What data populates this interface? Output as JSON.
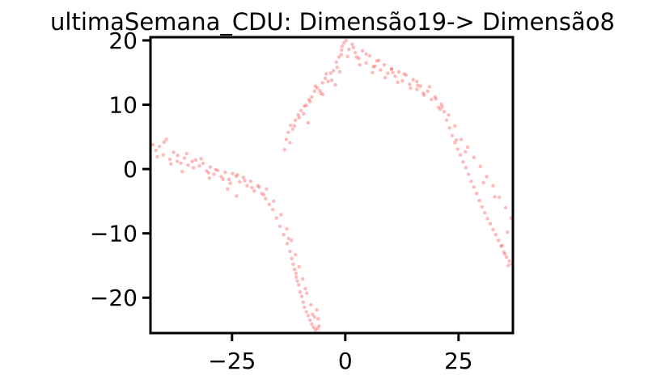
{
  "chart_data": {
    "type": "scatter",
    "title": "ultimaSemana_CDU: Dimensão19-> Dimensão8",
    "xlabel": "",
    "ylabel": "",
    "xlim": [
      -43,
      37
    ],
    "ylim": [
      -25.5,
      20.5
    ],
    "xticks": [
      {
        "value": -25,
        "label": "−25"
      },
      {
        "value": 0,
        "label": "0"
      },
      {
        "value": 25,
        "label": "25"
      }
    ],
    "yticks": [
      {
        "value": 20,
        "label": "20"
      },
      {
        "value": 10,
        "label": "10"
      },
      {
        "value": 0,
        "label": "0"
      },
      {
        "value": -10,
        "label": "−10"
      },
      {
        "value": -20,
        "label": "−20"
      }
    ],
    "grid": false,
    "legend": "none",
    "colors": {
      "point": "#ff3b3b",
      "axes": "#000000",
      "background": "#ffffff"
    },
    "series": [
      {
        "x": [
          -42.5,
          -41.8,
          -41.0,
          -40.2,
          -39.5,
          -38.7,
          -37.9,
          -37.1,
          -36.3,
          -35.5,
          -34.7,
          -33.8,
          -33.0,
          -32.2,
          -31.4,
          -30.6,
          -29.8,
          -29.0,
          -28.2,
          -27.4,
          -26.5,
          -25.7,
          -24.9,
          -24.1,
          -23.3,
          -22.5,
          -21.7,
          -20.9,
          -20.1,
          -19.3,
          -18.4,
          -17.6,
          -16.8,
          -16.0,
          -15.2,
          -14.4,
          -13.6,
          -12.8,
          -12.2,
          -11.8,
          -11.5,
          -11.2,
          -10.9,
          -10.6,
          -10.3,
          -10.0,
          -9.6,
          -9.3,
          -9.0,
          -8.6,
          -8.2,
          -7.8,
          -7.4,
          -7.0,
          -6.6,
          -6.3,
          -6.0,
          -5.8,
          -41.5,
          -40.0,
          -38.5,
          -37.0,
          -35.0,
          -33.5,
          -31.8,
          -30.2,
          -28.6,
          -27.0,
          -25.4,
          -23.8,
          -22.2,
          -20.6,
          -19.0,
          -17.4,
          -15.8,
          -14.2,
          -12.9,
          -11.9,
          -11.0,
          -10.2,
          -9.4,
          -8.5,
          -7.6,
          -6.8,
          -6.1,
          -36.0,
          -30.0,
          -26.0,
          -24.0,
          -18.0,
          -12.5,
          -10.8,
          -8.8,
          -7.2,
          -13.4,
          -13.0,
          -12.6,
          -12.1,
          -11.6,
          -11.0,
          -10.4,
          -9.8,
          -9.2,
          -8.6,
          -8.0,
          -7.4,
          -6.8,
          -6.2,
          -5.6,
          -5.0,
          -4.4,
          -3.8,
          -3.2,
          -2.6,
          -2.0,
          -1.4,
          -0.8,
          -0.3,
          -12.2,
          -11.2,
          -10.2,
          -9.0,
          -7.8,
          -6.6,
          -5.4,
          -4.2,
          -3.0,
          -1.8,
          -0.9,
          -8.2,
          -5.0,
          -2.2,
          -1.2,
          -0.7,
          0.2,
          0.8,
          1.5,
          2.2,
          3.0,
          3.8,
          4.6,
          5.4,
          6.2,
          7.0,
          7.8,
          8.6,
          9.4,
          10.2,
          11.0,
          11.8,
          12.6,
          13.4,
          14.2,
          15.0,
          15.8,
          16.6,
          17.4,
          18.2,
          19.0,
          19.8,
          20.6,
          21.2,
          21.8,
          22.4,
          23.0,
          23.6,
          24.2,
          24.8,
          25.4,
          26.0,
          26.6,
          27.2,
          27.8,
          28.4,
          29.0,
          29.6,
          30.2,
          30.8,
          31.4,
          32.0,
          32.6,
          33.2,
          33.8,
          34.4,
          35.0,
          35.6,
          36.2,
          36.8,
          0.5,
          1.8,
          3.2,
          4.6,
          6.0,
          7.4,
          8.8,
          10.2,
          11.6,
          13.0,
          14.4,
          15.8,
          17.2,
          18.6,
          20.0,
          21.4,
          22.8,
          24.2,
          25.6,
          27.0,
          28.4,
          29.8,
          31.2,
          32.6,
          34.0,
          35.4,
          36.6,
          2.5,
          6.5,
          10.5,
          16.0,
          21.0,
          24.5,
          26.5,
          30.5,
          33.0,
          35.8,
          34.6,
          35.2,
          36.0
        ],
        "y": [
          3.8,
          2.9,
          3.5,
          2.2,
          4.6,
          1.5,
          2.6,
          1.2,
          0.9,
          1.7,
          0.6,
          1.2,
          1.4,
          0.5,
          0.9,
          -0.3,
          0.3,
          -0.8,
          -0.2,
          -1.2,
          -0.5,
          -1.6,
          -0.7,
          -1.1,
          -2.0,
          -1.3,
          -2.6,
          -1.9,
          -3.4,
          -2.6,
          -3.8,
          -4.6,
          -5.5,
          -6.3,
          -7.6,
          -8.9,
          -10.2,
          -11.6,
          -12.8,
          -13.9,
          -14.8,
          -15.6,
          -16.2,
          -17.4,
          -18.0,
          -19.1,
          -19.8,
          -20.7,
          -21.5,
          -22.2,
          -22.8,
          -23.5,
          -24.1,
          -24.6,
          -25.0,
          -21.9,
          -23.3,
          -24.4,
          1.9,
          4.2,
          0.8,
          2.1,
          2.4,
          0.2,
          1.6,
          -0.6,
          -0.1,
          -1.6,
          -2.2,
          -0.9,
          -1.8,
          -2.9,
          -2.8,
          -3.1,
          -5.0,
          -7.1,
          -9.3,
          -11.1,
          -13.3,
          -15.2,
          -17.1,
          -19.3,
          -21.1,
          -23.0,
          -24.8,
          -0.4,
          -1.4,
          -3.1,
          -4.2,
          -4.0,
          -10.8,
          -16.8,
          -18.6,
          -22.6,
          3.0,
          4.6,
          5.7,
          6.8,
          6.2,
          7.6,
          8.4,
          9.1,
          8.6,
          9.9,
          10.8,
          11.2,
          12.1,
          12.6,
          12.2,
          13.4,
          14.1,
          13.6,
          14.9,
          15.3,
          16.6,
          17.4,
          18.5,
          19.6,
          4.1,
          6.7,
          8.0,
          9.8,
          10.5,
          12.9,
          11.8,
          14.8,
          13.8,
          15.8,
          17.8,
          7.2,
          11.6,
          13.1,
          15.1,
          19.1,
          20.0,
          18.6,
          19.4,
          18.1,
          17.2,
          18.4,
          16.5,
          17.6,
          15.9,
          16.8,
          15.4,
          16.2,
          14.9,
          15.6,
          14.4,
          15.1,
          13.7,
          14.6,
          13.2,
          13.9,
          12.4,
          12.9,
          11.5,
          12.1,
          10.8,
          11.2,
          9.6,
          10.1,
          8.9,
          7.6,
          6.4,
          5.2,
          4.1,
          3.1,
          2.2,
          1.1,
          0.2,
          -0.8,
          -1.9,
          -2.8,
          -3.8,
          -4.9,
          -5.9,
          -6.8,
          -7.7,
          -8.5,
          -9.4,
          -10.2,
          -11.1,
          -12.0,
          -12.9,
          -13.7,
          -14.3,
          -14.8,
          17.5,
          18.9,
          16.2,
          17.9,
          15.0,
          16.9,
          14.2,
          15.5,
          13.5,
          14.8,
          12.6,
          13.6,
          11.8,
          12.8,
          10.9,
          9.7,
          8.4,
          6.7,
          4.6,
          3.4,
          1.8,
          0.4,
          -1.2,
          -2.6,
          -4.4,
          -6.0,
          -7.6,
          17.4,
          16.0,
          15.0,
          13.0,
          9.3,
          4.5,
          2.7,
          -2.1,
          -4.3,
          -9.8,
          -11.9,
          -13.2,
          -15.0
        ]
      }
    ]
  }
}
